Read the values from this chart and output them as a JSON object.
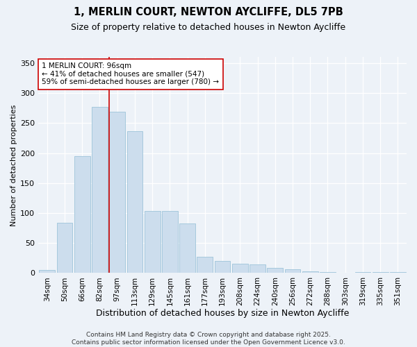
{
  "title": "1, MERLIN COURT, NEWTON AYCLIFFE, DL5 7PB",
  "subtitle": "Size of property relative to detached houses in Newton Aycliffe",
  "xlabel": "Distribution of detached houses by size in Newton Aycliffe",
  "ylabel": "Number of detached properties",
  "bar_color": "#ccdded",
  "bar_edge_color": "#90bcd4",
  "bg_color": "#edf2f8",
  "grid_color": "#ffffff",
  "vline_color": "#cc0000",
  "annotation_text": "1 MERLIN COURT: 96sqm\n← 41% of detached houses are smaller (547)\n59% of semi-detached houses are larger (780) →",
  "annotation_box_color": "#ffffff",
  "annotation_box_edge": "#cc0000",
  "categories": [
    "34sqm",
    "50sqm",
    "66sqm",
    "82sqm",
    "97sqm",
    "113sqm",
    "129sqm",
    "145sqm",
    "161sqm",
    "177sqm",
    "193sqm",
    "208sqm",
    "224sqm",
    "240sqm",
    "256sqm",
    "272sqm",
    "288sqm",
    "303sqm",
    "319sqm",
    "335sqm",
    "351sqm"
  ],
  "values": [
    5,
    84,
    195,
    277,
    269,
    237,
    104,
    104,
    83,
    27,
    20,
    16,
    14,
    8,
    6,
    3,
    1,
    0,
    1,
    2,
    2
  ],
  "ylim": [
    0,
    360
  ],
  "yticks": [
    0,
    50,
    100,
    150,
    200,
    250,
    300,
    350
  ],
  "footer": "Contains HM Land Registry data © Crown copyright and database right 2025.\nContains public sector information licensed under the Open Government Licence v3.0.",
  "title_fontsize": 10.5,
  "subtitle_fontsize": 9,
  "xlabel_fontsize": 9,
  "ylabel_fontsize": 8,
  "tick_fontsize": 7.5,
  "annot_fontsize": 7.5,
  "footer_fontsize": 6.5
}
